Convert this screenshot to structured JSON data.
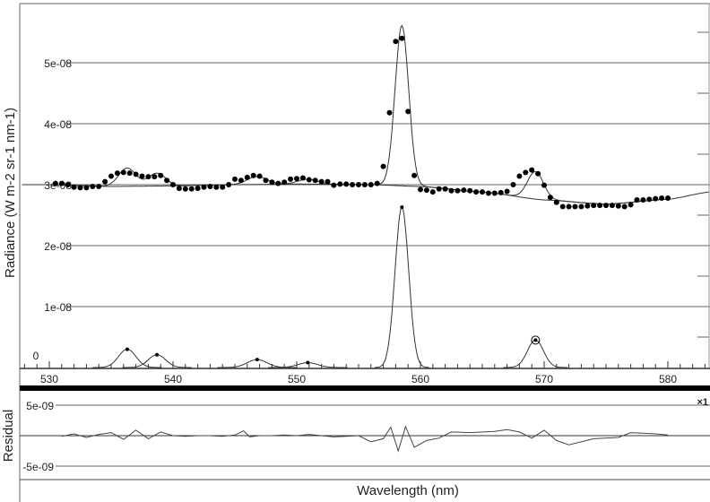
{
  "chart_data": [
    {
      "type": "scatter",
      "panel": "spectrum",
      "xlabel": "Wavelength (nm)",
      "ylabel": "Radiance (W m-2 sr-1 nm-1)",
      "xlim": [
        527.8,
        583.4
      ],
      "ylim": [
        -3e-10,
        5.85e-08
      ],
      "x_ticks": [
        530,
        540,
        550,
        560,
        570,
        580
      ],
      "x_tick_labels": [
        "530",
        "540",
        "550",
        "560",
        "570",
        "580"
      ],
      "y_ticks": [
        0,
        1e-08,
        2e-08,
        3e-08,
        4e-08,
        5e-08
      ],
      "y_tick_labels": [
        "0",
        "1e-08",
        "2e-08",
        "3e-08",
        "4e-08",
        "5e-08"
      ],
      "grid": true,
      "colors": {
        "points": "#000000",
        "lines": "#333333",
        "grid": "#555555"
      },
      "observed_points_e08": [
        [
          530.5,
          3.02
        ],
        [
          531,
          3.02
        ],
        [
          531.5,
          3.0
        ],
        [
          532,
          2.96
        ],
        [
          532.5,
          2.95
        ],
        [
          533,
          2.95
        ],
        [
          533.5,
          2.97
        ],
        [
          534,
          2.97
        ],
        [
          534.5,
          3.05
        ],
        [
          535,
          3.14
        ],
        [
          535.5,
          3.19
        ],
        [
          536,
          3.2
        ],
        [
          536.5,
          3.19
        ],
        [
          537,
          3.17
        ],
        [
          537.5,
          3.14
        ],
        [
          538,
          3.13
        ],
        [
          538.5,
          3.13
        ],
        [
          539,
          3.15
        ],
        [
          539.5,
          3.07
        ],
        [
          540,
          3.0
        ],
        [
          540.5,
          2.94
        ],
        [
          541,
          2.93
        ],
        [
          541.5,
          2.93
        ],
        [
          542,
          2.94
        ],
        [
          542.5,
          2.96
        ],
        [
          543,
          2.97
        ],
        [
          543.5,
          2.96
        ],
        [
          544,
          2.96
        ],
        [
          544.5,
          3.0
        ],
        [
          545,
          3.09
        ],
        [
          545.5,
          3.07
        ],
        [
          546,
          3.12
        ],
        [
          546.5,
          3.15
        ],
        [
          547,
          3.14
        ],
        [
          547.5,
          3.07
        ],
        [
          548,
          3.04
        ],
        [
          548.5,
          3.02
        ],
        [
          549,
          3.04
        ],
        [
          549.5,
          3.09
        ],
        [
          550,
          3.1
        ],
        [
          550.5,
          3.11
        ],
        [
          551,
          3.08
        ],
        [
          551.5,
          3.07
        ],
        [
          552,
          3.05
        ],
        [
          552.5,
          3.05
        ],
        [
          553,
          2.99
        ],
        [
          553.5,
          3.01
        ],
        [
          554,
          3.01
        ],
        [
          554.5,
          3.0
        ],
        [
          555,
          3.0
        ],
        [
          555.5,
          3.0
        ],
        [
          556,
          3.0
        ],
        [
          556.5,
          3.02
        ],
        [
          557,
          3.3
        ],
        [
          557.5,
          4.18
        ],
        [
          558,
          5.35
        ],
        [
          558.5,
          5.4
        ],
        [
          559,
          4.2
        ],
        [
          559.5,
          3.15
        ],
        [
          560,
          2.92
        ],
        [
          560.5,
          2.91
        ],
        [
          561,
          2.88
        ],
        [
          561.5,
          2.93
        ],
        [
          562,
          2.93
        ],
        [
          562.5,
          2.9
        ],
        [
          563,
          2.9
        ],
        [
          563.5,
          2.91
        ],
        [
          564,
          2.9
        ],
        [
          564.5,
          2.88
        ],
        [
          565,
          2.88
        ],
        [
          565.5,
          2.86
        ],
        [
          566,
          2.86
        ],
        [
          566.5,
          2.87
        ],
        [
          567,
          2.89
        ],
        [
          567.5,
          3.0
        ],
        [
          568,
          3.14
        ],
        [
          568.5,
          3.2
        ],
        [
          569,
          3.24
        ],
        [
          569.5,
          3.18
        ],
        [
          570,
          2.99
        ],
        [
          570.5,
          2.79
        ],
        [
          571,
          2.71
        ],
        [
          571.5,
          2.64
        ],
        [
          572,
          2.64
        ],
        [
          572.5,
          2.64
        ],
        [
          573,
          2.64
        ],
        [
          573.5,
          2.65
        ],
        [
          574,
          2.66
        ],
        [
          574.5,
          2.66
        ],
        [
          575,
          2.66
        ],
        [
          575.5,
          2.66
        ],
        [
          576,
          2.65
        ],
        [
          576.5,
          2.64
        ],
        [
          577,
          2.67
        ],
        [
          577.5,
          2.75
        ],
        [
          578,
          2.75
        ],
        [
          578.5,
          2.76
        ],
        [
          579,
          2.77
        ],
        [
          579.5,
          2.78
        ],
        [
          580,
          2.78
        ]
      ],
      "continuum_e08": [
        [
          527.8,
          3.0
        ],
        [
          530,
          3.0
        ],
        [
          535,
          2.97
        ],
        [
          540,
          2.98
        ],
        [
          545,
          3.0
        ],
        [
          550,
          3.01
        ],
        [
          556,
          3.0
        ],
        [
          560,
          2.97
        ],
        [
          565,
          2.88
        ],
        [
          570,
          2.75
        ],
        [
          575,
          2.68
        ],
        [
          580,
          2.76
        ],
        [
          583.4,
          2.88
        ]
      ],
      "fitted_lines": [
        {
          "center": 536.3,
          "amplitude_e08": 0.3,
          "sigma_nm": 0.7
        },
        {
          "center": 538.7,
          "amplitude_e08": 0.21,
          "sigma_nm": 0.7
        },
        {
          "center": 546.8,
          "amplitude_e08": 0.13,
          "sigma_nm": 0.8
        },
        {
          "center": 550.9,
          "amplitude_e08": 0.08,
          "sigma_nm": 0.8
        },
        {
          "center": 558.5,
          "amplitude_e08": 2.63,
          "sigma_nm": 0.55
        },
        {
          "center": 569.3,
          "amplitude_e08": 0.45,
          "sigma_nm": 0.65,
          "selected": true
        }
      ]
    },
    {
      "type": "line",
      "panel": "residual",
      "ylabel": "Residual",
      "xlabel": "Wavelength (nm)",
      "scale_label": "×1",
      "ylim": [
        -1e-08,
        1e-08
      ],
      "y_ticks": [
        -5e-09,
        5e-09
      ],
      "y_tick_labels": [
        "-5e-09",
        "5e-09"
      ],
      "residual_e09": [
        [
          531,
          -0.1
        ],
        [
          532,
          0.3
        ],
        [
          533,
          -0.3
        ],
        [
          534,
          0.2
        ],
        [
          535,
          0.5
        ],
        [
          536,
          -0.6
        ],
        [
          537,
          0.9
        ],
        [
          538,
          -0.5
        ],
        [
          539,
          0.6
        ],
        [
          540,
          0
        ],
        [
          541,
          -0.1
        ],
        [
          542,
          0
        ],
        [
          543,
          0
        ],
        [
          544,
          -0.1
        ],
        [
          545,
          0.1
        ],
        [
          545.7,
          0.8
        ],
        [
          546.2,
          -0.2
        ],
        [
          547,
          0
        ],
        [
          548,
          0
        ],
        [
          549,
          0.1
        ],
        [
          550,
          0
        ],
        [
          551,
          0.2
        ],
        [
          552,
          0
        ],
        [
          553,
          -0.2
        ],
        [
          555,
          0
        ],
        [
          556,
          -1.0
        ],
        [
          557,
          -0.5
        ],
        [
          557.6,
          1.4
        ],
        [
          558.2,
          -2.5
        ],
        [
          558.8,
          1.5
        ],
        [
          559.5,
          -1.9
        ],
        [
          560.5,
          -0.8
        ],
        [
          561.5,
          -0.4
        ],
        [
          562.5,
          0.6
        ],
        [
          564,
          0.5
        ],
        [
          566,
          0.7
        ],
        [
          567,
          1.0
        ],
        [
          568,
          0.6
        ],
        [
          569,
          -0.4
        ],
        [
          570,
          0.9
        ],
        [
          571,
          -0.8
        ],
        [
          572,
          -1.5
        ],
        [
          574,
          -0.5
        ],
        [
          576,
          -0.3
        ],
        [
          577,
          0.5
        ],
        [
          578,
          0.4
        ],
        [
          579,
          0.3
        ],
        [
          580,
          0.1
        ]
      ]
    }
  ]
}
